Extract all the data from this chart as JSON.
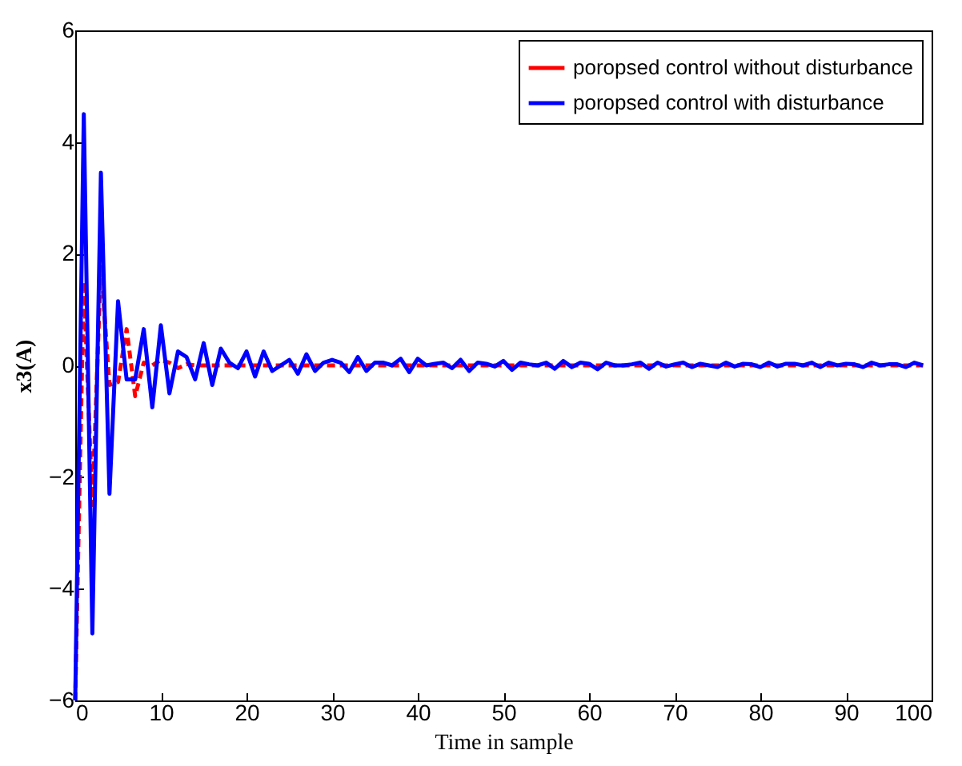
{
  "chart_data": {
    "type": "line",
    "xlabel": "Time in sample",
    "ylabel": "x3(A)",
    "xlim": [
      0,
      100
    ],
    "ylim": [
      -6,
      6
    ],
    "xticks": [
      0,
      10,
      20,
      30,
      40,
      50,
      60,
      70,
      80,
      90,
      100
    ],
    "yticks": [
      -6,
      -4,
      -2,
      0,
      2,
      4,
      6
    ],
    "grid": false,
    "legend": "top right",
    "marker": "none",
    "x": [
      0,
      1,
      2,
      3,
      4,
      5,
      6,
      7,
      8,
      9,
      10,
      11,
      12,
      13,
      14,
      15,
      16,
      17,
      18,
      19,
      20,
      21,
      22,
      23,
      24,
      25,
      26,
      27,
      28,
      29,
      30,
      31,
      32,
      33,
      34,
      35,
      36,
      37,
      38,
      39,
      40,
      41,
      42,
      43,
      44,
      45,
      46,
      47,
      48,
      49,
      50,
      51,
      52,
      53,
      54,
      55,
      56,
      57,
      58,
      59,
      60,
      61,
      62,
      63,
      64,
      65,
      66,
      67,
      68,
      69,
      70,
      71,
      72,
      73,
      74,
      75,
      76,
      77,
      78,
      79,
      80,
      81,
      82,
      83,
      84,
      85,
      86,
      87,
      88,
      89,
      90,
      91,
      92,
      93,
      94,
      95,
      96,
      97,
      98,
      99
    ],
    "series": [
      {
        "name": "poropsed control without disturbance",
        "color": "#ff0000",
        "line_style": "dashed",
        "values": [
          -6,
          1.5,
          -2.5,
          1.8,
          -0.35,
          -0.3,
          0.65,
          -0.55,
          0.05,
          0,
          0.1,
          0.05,
          -0.05,
          0.02,
          0,
          0,
          0,
          0,
          0,
          0,
          0,
          0,
          0,
          0,
          0,
          0,
          0,
          0,
          0,
          0,
          0,
          0,
          0,
          0,
          0,
          0,
          0,
          0,
          0,
          0,
          0,
          0,
          0,
          0,
          0,
          0,
          0,
          0,
          0,
          0,
          0,
          0,
          0,
          0,
          0,
          0,
          0,
          0,
          0,
          0,
          0,
          0,
          0,
          0,
          0,
          0,
          0,
          0,
          0,
          0,
          0,
          0,
          0,
          0,
          0,
          0,
          0,
          0,
          0,
          0,
          0,
          0,
          0,
          0,
          0,
          0,
          0,
          0,
          0,
          0,
          0,
          0,
          0,
          0,
          0,
          0,
          0,
          0,
          0,
          0
        ]
      },
      {
        "name": "poropsed control with disturbance",
        "color": "#0000ff",
        "line_style": "solid",
        "values": [
          -6,
          4.5,
          -4.8,
          3.45,
          -2.3,
          1.15,
          -0.25,
          -0.25,
          0.65,
          -0.75,
          0.72,
          -0.5,
          0.25,
          0.15,
          -0.25,
          0.4,
          -0.35,
          0.3,
          0.05,
          -0.05,
          0.25,
          -0.2,
          0.25,
          -0.1,
          0,
          0.1,
          -0.15,
          0.2,
          -0.1,
          0.05,
          0.1,
          0.05,
          -0.12,
          0.15,
          -0.1,
          0.05,
          0.05,
          0,
          0.12,
          -0.12,
          0.12,
          0,
          0.03,
          0.05,
          -0.05,
          0.1,
          -0.1,
          0.05,
          0.03,
          -0.02,
          0.08,
          -0.08,
          0.05,
          0.02,
          0,
          0.05,
          -0.06,
          0.08,
          -0.03,
          0.05,
          0.03,
          -0.07,
          0.05,
          0,
          0,
          0.02,
          0.05,
          -0.06,
          0.05,
          -0.02,
          0.02,
          0.05,
          -0.03,
          0.03,
          0,
          -0.03,
          0.05,
          -0.02,
          0.03,
          0.02,
          -0.03,
          0.05,
          -0.02,
          0.03,
          0.03,
          0,
          0.05,
          -0.03,
          0.05,
          0,
          0.03,
          0.02,
          -0.03,
          0.05,
          0,
          0.02,
          0.02,
          -0.03,
          0.05,
          0
        ]
      }
    ]
  }
}
